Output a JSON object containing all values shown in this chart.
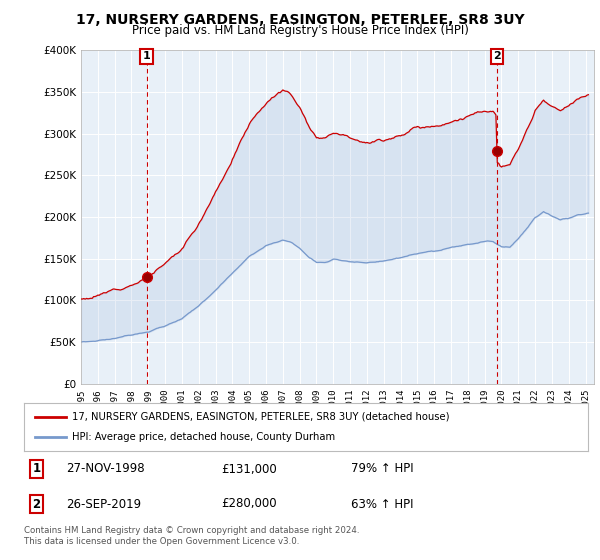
{
  "title": "17, NURSERY GARDENS, EASINGTON, PETERLEE, SR8 3UY",
  "subtitle": "Price paid vs. HM Land Registry's House Price Index (HPI)",
  "red_label": "17, NURSERY GARDENS, EASINGTON, PETERLEE, SR8 3UY (detached house)",
  "blue_label": "HPI: Average price, detached house, County Durham",
  "transaction1": {
    "label": "1",
    "date": "27-NOV-1998",
    "price": "£131,000",
    "hpi": "79% ↑ HPI",
    "year": 1998.9
  },
  "transaction2": {
    "label": "2",
    "date": "26-SEP-2019",
    "price": "£280,000",
    "hpi": "63% ↑ HPI",
    "year": 2019.73
  },
  "footnote": "Contains HM Land Registry data © Crown copyright and database right 2024.\nThis data is licensed under the Open Government Licence v3.0.",
  "ylim": [
    0,
    400000
  ],
  "yticks": [
    0,
    50000,
    100000,
    150000,
    200000,
    250000,
    300000,
    350000,
    400000
  ],
  "xlim_start": 1995.0,
  "xlim_end": 2025.5,
  "background_color": "#ffffff",
  "plot_bg_color": "#e8f0f8",
  "grid_color": "#ffffff",
  "red_color": "#cc0000",
  "blue_color": "#7799cc",
  "dashed_line_color": "#cc0000",
  "title_fontsize": 10,
  "subtitle_fontsize": 8.5
}
